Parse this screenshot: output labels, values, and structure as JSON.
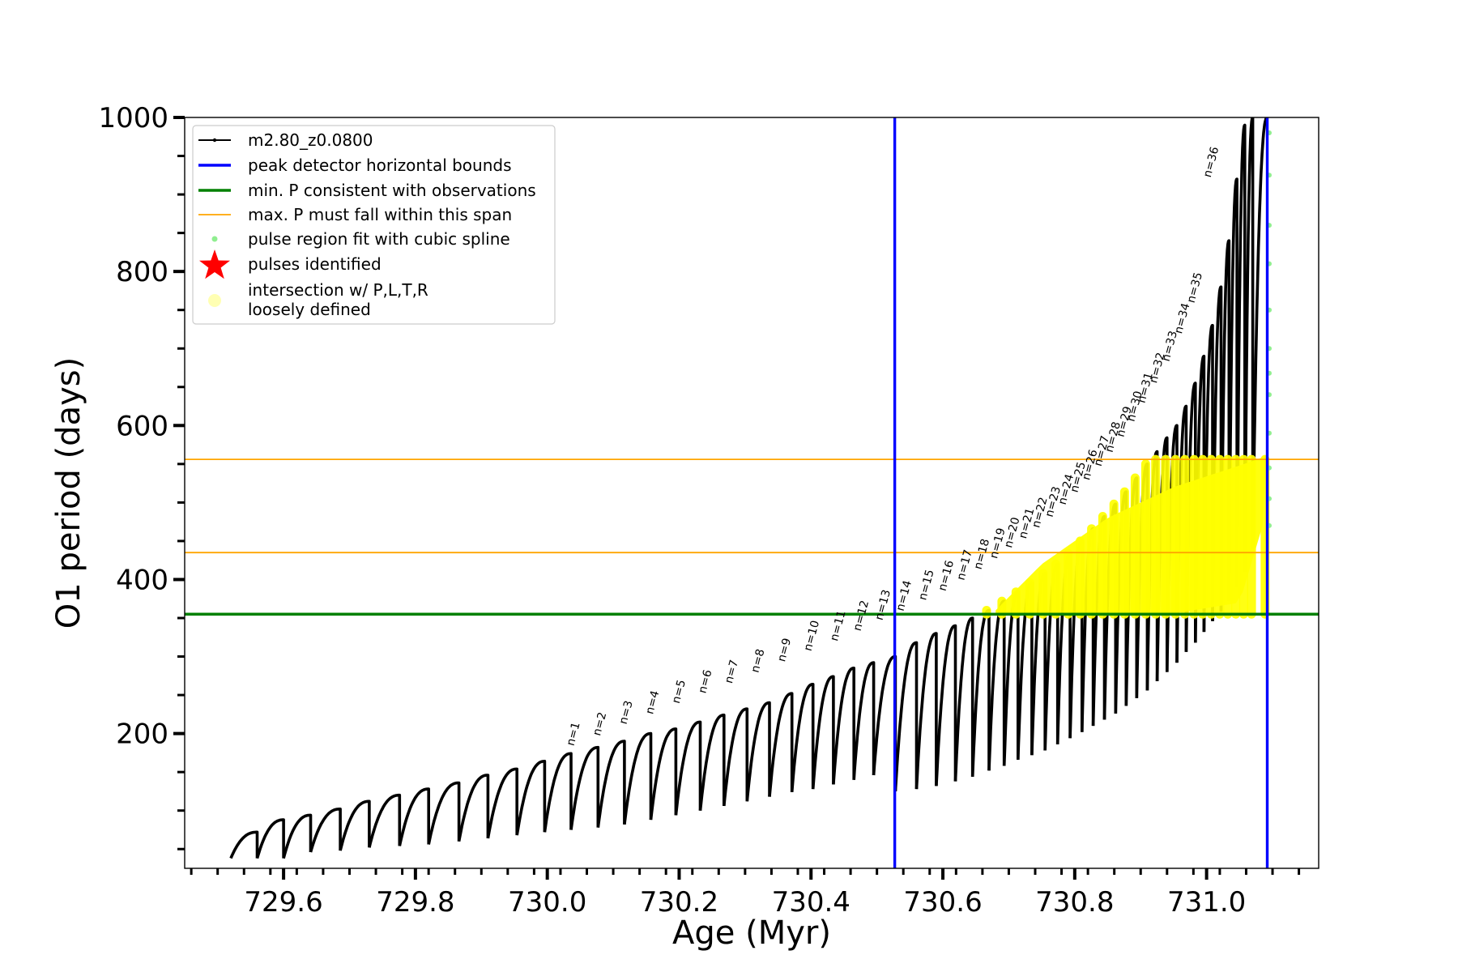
{
  "chart_data": {
    "type": "line",
    "title": "",
    "xlabel": "Age (Myr)",
    "ylabel": "O1 period (days)",
    "xlim": [
      729.45,
      731.17
    ],
    "ylim": [
      25,
      1000
    ],
    "x_ticks": [
      729.6,
      729.8,
      730.0,
      730.2,
      730.4,
      730.6,
      730.8,
      731.0
    ],
    "x_tick_labels": [
      "729.6",
      "729.8",
      "730.0",
      "730.2",
      "730.4",
      "730.6",
      "730.8",
      "731.0"
    ],
    "y_ticks": [
      200,
      400,
      600,
      800,
      1000
    ],
    "y_tick_labels": [
      "200",
      "400",
      "600",
      "800",
      "1000"
    ],
    "legend_position": "upper-left",
    "legend": [
      {
        "label": "m2.80_z0.0800",
        "kind": "line-marker",
        "color": "#000000"
      },
      {
        "label": "peak detector horizontal bounds",
        "kind": "line",
        "color": "#0000ff"
      },
      {
        "label": "min. P consistent with observations",
        "kind": "line",
        "color": "#008000"
      },
      {
        "label": "max. P must fall within this span",
        "kind": "line",
        "color": "#ffa500"
      },
      {
        "label": "pulse region fit with cubic spline",
        "kind": "dot",
        "color": "#90ee90"
      },
      {
        "label": "pulses identified",
        "kind": "star",
        "color": "#ff0000"
      },
      {
        "label": "intersection w/ P,L,T,R\nloosely defined",
        "kind": "circle",
        "color": "#ffffa0"
      }
    ],
    "vertical_lines": {
      "color": "#0000ff",
      "x": [
        730.527,
        731.092
      ]
    },
    "min_period_line": {
      "color": "#008000",
      "y": 355
    },
    "max_period_span": {
      "color": "#ffa500",
      "y": [
        435,
        556
      ]
    },
    "pulses": {
      "color": "#000000",
      "start_x": [
        729.52,
        729.56,
        729.6,
        729.641,
        729.686,
        729.73,
        729.776,
        729.82,
        729.866,
        729.91,
        729.954,
        729.996,
        730.036,
        730.077,
        730.117,
        730.157,
        730.195,
        730.232,
        730.268,
        730.303,
        730.337,
        730.371,
        730.403,
        730.434,
        730.465,
        730.495,
        730.528,
        730.56,
        730.59,
        730.619,
        730.645,
        730.67,
        730.693,
        730.714,
        730.735,
        730.755,
        730.774,
        730.793,
        730.811,
        730.828,
        730.845,
        730.862,
        730.878,
        730.894,
        730.91,
        730.925,
        730.94,
        730.955,
        730.969,
        730.983,
        730.996,
        731.009,
        731.022,
        731.034,
        731.046,
        731.058,
        731.07
      ],
      "min_period": [
        38,
        38,
        38,
        46,
        48,
        52,
        54,
        56,
        60,
        64,
        68,
        72,
        75,
        78,
        82,
        88,
        94,
        100,
        106,
        112,
        118,
        124,
        128,
        134,
        140,
        146,
        125,
        128,
        132,
        138,
        144,
        152,
        158,
        166,
        172,
        178,
        186,
        194,
        202,
        210,
        218,
        226,
        236,
        246,
        256,
        268,
        280,
        292,
        306,
        318,
        332,
        346,
        358,
        372,
        390,
        410,
        440
      ],
      "max_period": [
        72,
        88,
        94,
        102,
        112,
        120,
        128,
        136,
        146,
        154,
        164,
        174,
        182,
        190,
        200,
        206,
        215,
        224,
        232,
        240,
        252,
        264,
        274,
        285,
        292,
        300,
        318,
        330,
        340,
        350,
        360,
        372,
        384,
        396,
        408,
        420,
        434,
        450,
        466,
        482,
        498,
        514,
        532,
        550,
        566,
        584,
        600,
        625,
        655,
        690,
        730,
        780,
        840,
        920,
        990,
        1000,
        1000
      ]
    },
    "pulse_labels": {
      "text": [
        "n=1",
        "n=2",
        "n=3",
        "n=4",
        "n=5",
        "n=6",
        "n=7",
        "n=8",
        "n=9",
        "n=10",
        "n=11",
        "n=12",
        "n=13",
        "n=14",
        "n=15",
        "n=16",
        "n=17",
        "n=18",
        "n=19",
        "n=20",
        "n=21",
        "n=22",
        "n=23",
        "n=24",
        "n=25",
        "n=26",
        "n=27",
        "n=28",
        "n=29",
        "n=30",
        "n=31",
        "n=32",
        "n=33",
        "n=34",
        "n=35",
        "n=36"
      ],
      "x": [
        730.04,
        730.08,
        730.12,
        730.16,
        730.2,
        730.24,
        730.28,
        730.32,
        730.36,
        730.4,
        730.44,
        730.475,
        730.508,
        730.54,
        730.574,
        730.604,
        730.632,
        730.658,
        730.682,
        730.704,
        730.726,
        730.746,
        730.766,
        730.786,
        730.804,
        730.822,
        730.84,
        730.857,
        730.874,
        730.89,
        730.906,
        730.924,
        730.943,
        730.962,
        730.981,
        731.006
      ],
      "y": [
        177,
        190,
        205,
        218,
        232,
        245,
        258,
        272,
        286,
        300,
        313,
        326,
        340,
        352,
        366,
        378,
        392,
        406,
        420,
        434,
        446,
        460,
        474,
        490,
        506,
        522,
        540,
        558,
        578,
        598,
        622,
        648,
        676,
        712,
        752,
        915
      ]
    },
    "intersection_points": {
      "color": "#ffff00",
      "region": {
        "x_start": 730.52,
        "x_end": 731.092,
        "y_floor": 355
      },
      "band_bottom": [
        [
          730.68,
          356
        ],
        [
          730.8,
          356
        ],
        [
          730.95,
          356
        ],
        [
          731.05,
          370
        ],
        [
          731.085,
          470
        ]
      ],
      "band_top": [
        [
          730.68,
          360
        ],
        [
          730.75,
          420
        ],
        [
          730.85,
          480
        ],
        [
          730.95,
          520
        ],
        [
          731.05,
          548
        ],
        [
          731.09,
          560
        ]
      ]
    },
    "cubic_spline_points": {
      "color": "#90ee90",
      "x": 731.095,
      "y": [
        470,
        505,
        545,
        590,
        640,
        668,
        700,
        750,
        810,
        860,
        925,
        980
      ]
    }
  }
}
